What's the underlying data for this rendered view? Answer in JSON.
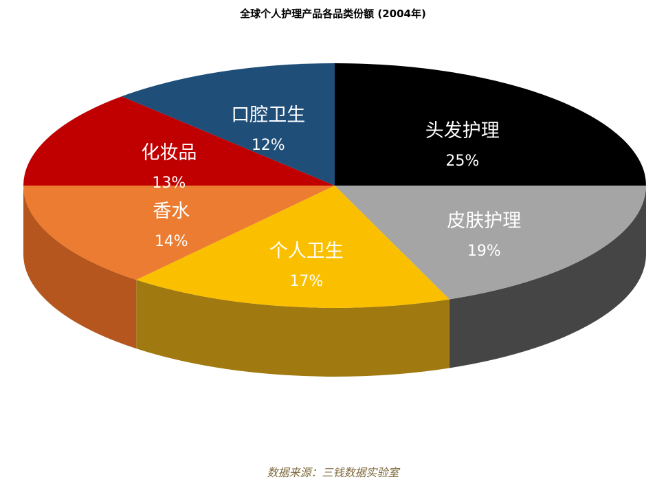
{
  "chart_data": {
    "type": "pie",
    "title": "全球个人护理产品各品类份额 (2004年)",
    "source": "数据来源：三钱数据实验室",
    "slices": [
      {
        "label": "头发护理",
        "value": 25,
        "value_label": "25%",
        "color": "#000000",
        "side_color": "#1a1a1a"
      },
      {
        "label": "皮肤护理",
        "value": 19,
        "value_label": "19%",
        "color": "#a5a5a5",
        "side_color": "#454545"
      },
      {
        "label": "个人卫生",
        "value": 17,
        "value_label": "17%",
        "color": "#fac000",
        "side_color": "#a07a10"
      },
      {
        "label": "香水",
        "value": 14,
        "value_label": "14%",
        "color": "#ec7c31",
        "side_color": "#b5561e"
      },
      {
        "label": "化妆品",
        "value": 13,
        "value_label": "13%",
        "color": "#c00000",
        "side_color": "#7a0000"
      },
      {
        "label": "口腔卫生",
        "value": 12,
        "value_label": "12%",
        "color": "#1f4e79",
        "side_color": "#12304d"
      }
    ]
  }
}
